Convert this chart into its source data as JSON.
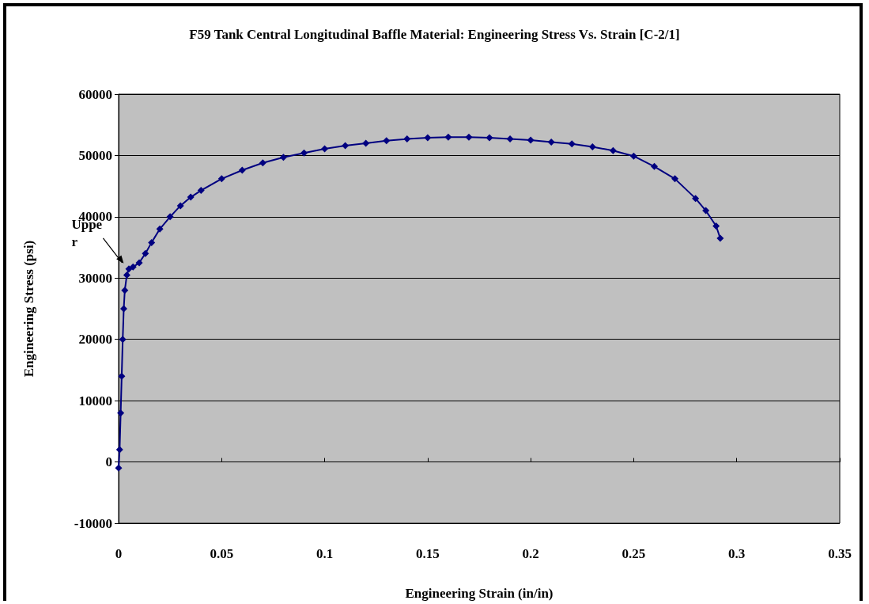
{
  "chart_data": {
    "type": "line",
    "title": "F59 Tank Central Longitudinal Baffle Material: Engineering Stress Vs. Strain [C-2/1]",
    "xlabel": "Engineering Strain (in/in)",
    "ylabel": "Engineering Stress (psi)",
    "xlim": [
      0,
      0.35
    ],
    "xticks": [
      0,
      0.05,
      0.1,
      0.15,
      0.2,
      0.25,
      0.3,
      0.35
    ],
    "ylim": [
      -10000,
      60000
    ],
    "yticks": [
      -10000,
      0,
      10000,
      20000,
      30000,
      40000,
      50000,
      60000
    ],
    "grid": "y",
    "marker": "diamond",
    "line_style": "solid",
    "annotations": [
      {
        "text": "Upper",
        "x": 0.004,
        "y": 32000
      }
    ],
    "series": [
      {
        "color": "#000080",
        "x": [
          0,
          0.0005,
          0.001,
          0.0015,
          0.002,
          0.0025,
          0.003,
          0.004,
          0.005,
          0.007,
          0.01,
          0.013,
          0.016,
          0.02,
          0.025,
          0.03,
          0.035,
          0.04,
          0.05,
          0.06,
          0.07,
          0.08,
          0.09,
          0.1,
          0.11,
          0.12,
          0.13,
          0.14,
          0.15,
          0.16,
          0.17,
          0.18,
          0.19,
          0.2,
          0.21,
          0.22,
          0.23,
          0.24,
          0.25,
          0.26,
          0.27,
          0.28,
          0.285,
          0.29,
          0.292
        ],
        "values": [
          -1000,
          2000,
          8000,
          14000,
          20000,
          25000,
          28000,
          30500,
          31500,
          31800,
          32500,
          34000,
          35800,
          38000,
          40000,
          41800,
          43200,
          44300,
          46200,
          47600,
          48800,
          49700,
          50400,
          51100,
          51600,
          52000,
          52400,
          52700,
          52900,
          53000,
          53000,
          52900,
          52700,
          52500,
          52200,
          51900,
          51400,
          50800,
          49900,
          48200,
          46200,
          43000,
          41000,
          38500,
          36500
        ]
      }
    ]
  }
}
